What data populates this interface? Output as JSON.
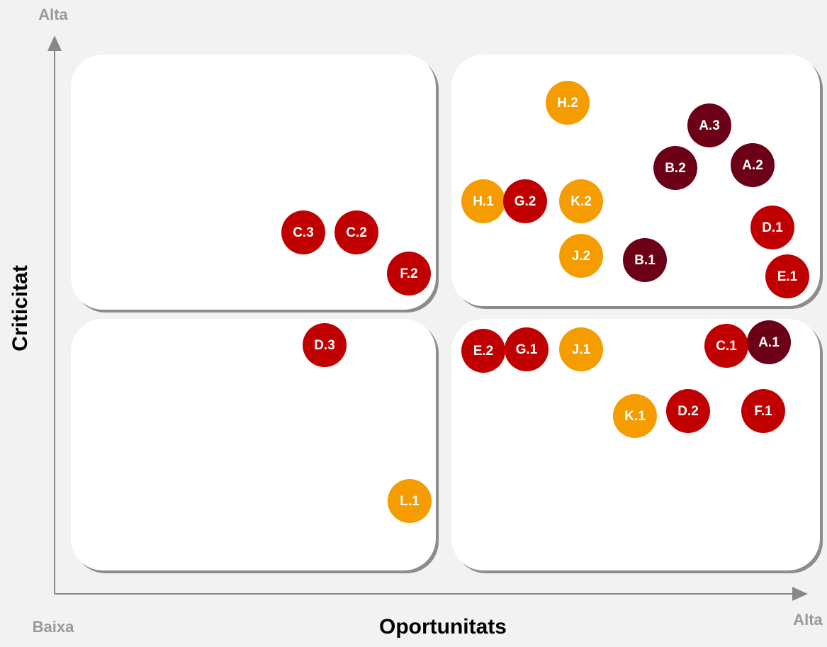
{
  "axes": {
    "y_high": "Alta",
    "y_title": "Criticitat",
    "x_low": "Baixa",
    "x_title": "Oportunitats",
    "x_high": "Alta"
  },
  "nodes": [
    {
      "label": "H.2",
      "color": "#f59c00"
    },
    {
      "label": "A.3",
      "color": "#6b0016"
    },
    {
      "label": "B.2",
      "color": "#6b0016"
    },
    {
      "label": "A.2",
      "color": "#6b0016"
    },
    {
      "label": "H.1",
      "color": "#f59c00"
    },
    {
      "label": "G.2",
      "color": "#c00000"
    },
    {
      "label": "K.2",
      "color": "#f59c00"
    },
    {
      "label": "C.3",
      "color": "#c00000"
    },
    {
      "label": "C.2",
      "color": "#c00000"
    },
    {
      "label": "D.1",
      "color": "#c00000"
    },
    {
      "label": "J.2",
      "color": "#f59c00"
    },
    {
      "label": "B.1",
      "color": "#6b0016"
    },
    {
      "label": "F.2",
      "color": "#c00000"
    },
    {
      "label": "E.1",
      "color": "#c00000"
    },
    {
      "label": "D.3",
      "color": "#c00000"
    },
    {
      "label": "E.2",
      "color": "#c00000"
    },
    {
      "label": "G.1",
      "color": "#c00000"
    },
    {
      "label": "J.1",
      "color": "#f59c00"
    },
    {
      "label": "C.1",
      "color": "#c00000"
    },
    {
      "label": "A.1",
      "color": "#6b0016"
    },
    {
      "label": "K.1",
      "color": "#f59c00"
    },
    {
      "label": "D.2",
      "color": "#c00000"
    },
    {
      "label": "F.1",
      "color": "#c00000"
    },
    {
      "label": "L.1",
      "color": "#f59c00"
    }
  ]
}
